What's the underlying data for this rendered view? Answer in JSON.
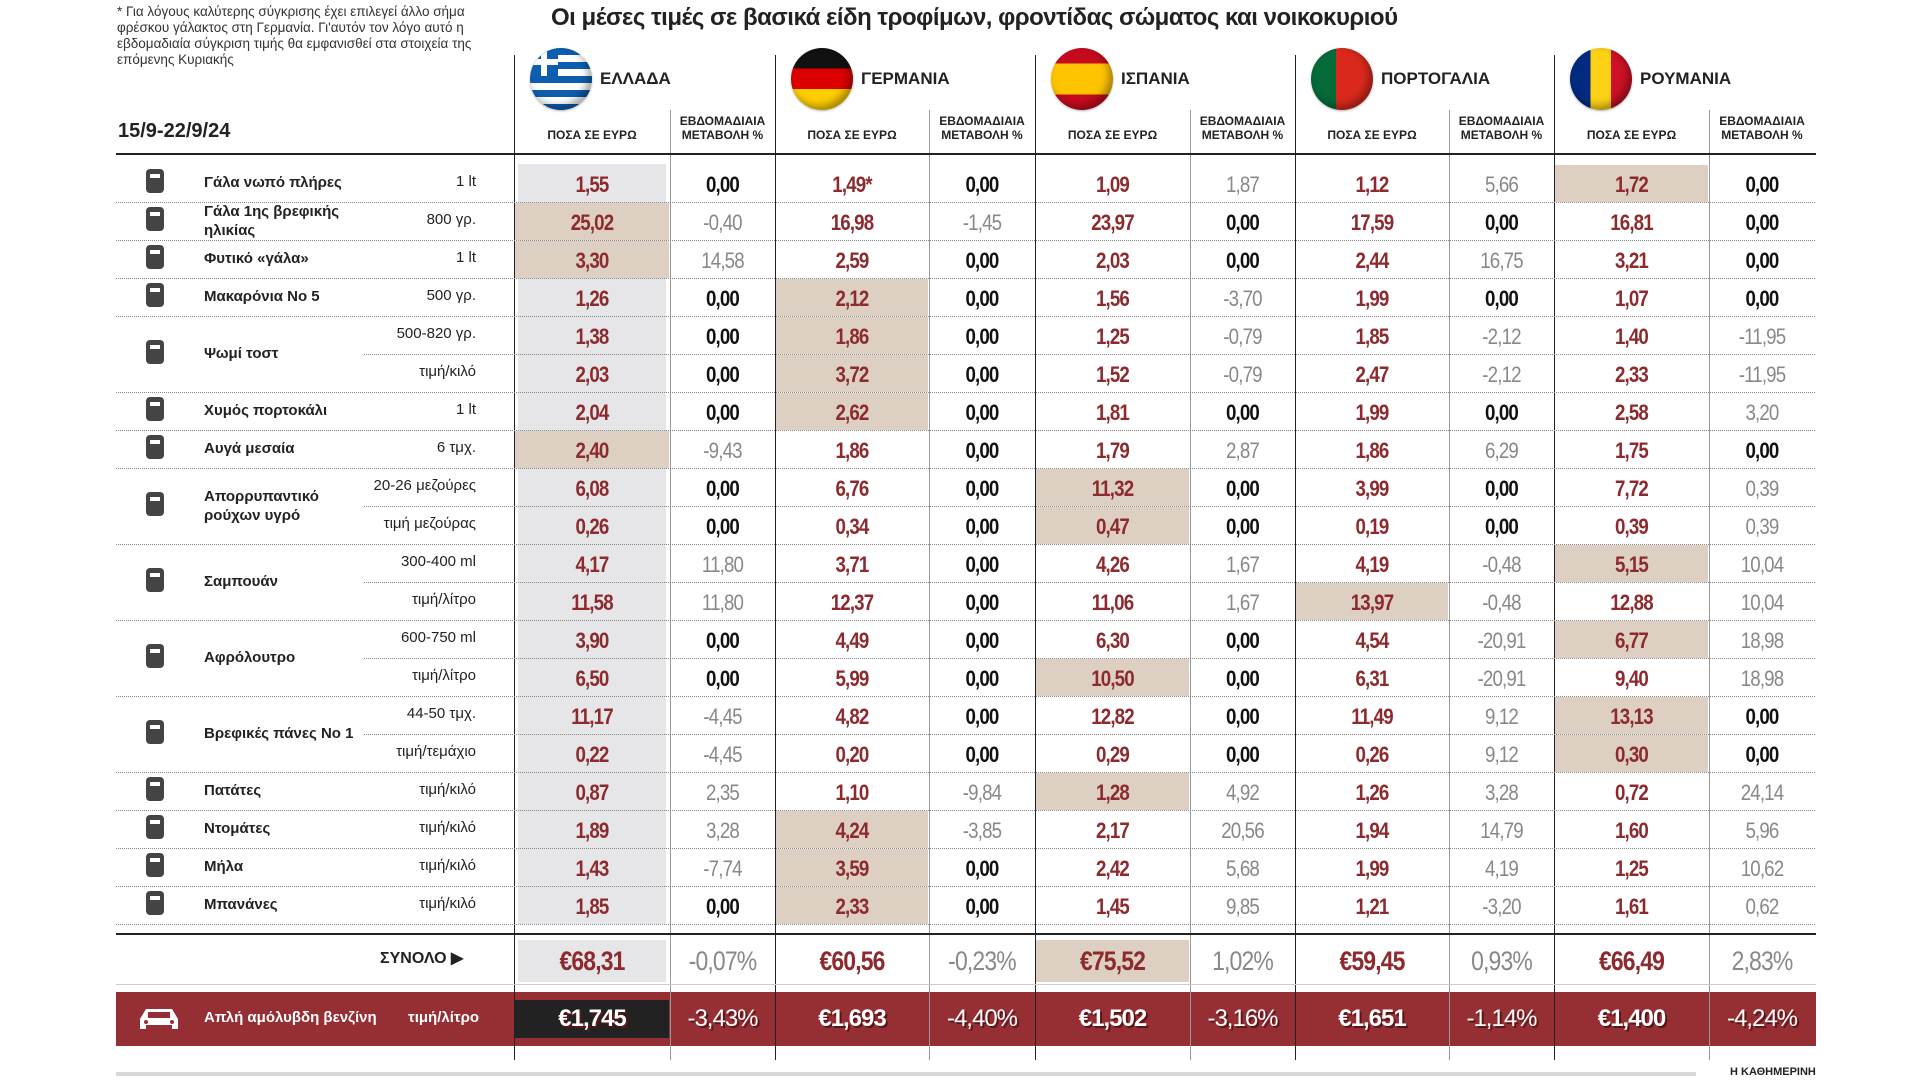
{
  "note": "* Για λόγους καλύτερης σύγκρισης έχει επιλεγεί άλλο σήμα φρέσκου γάλακτος στη Γερμανία. Γι'αυτόν τον λόγο αυτό η εβδομαδιαία σύγκριση τιμής θα εμφανισθεί στα στοιχεία της επόμενης Κυριακής",
  "title": "Οι μέσες τιμές σε βασικά είδη τροφίμων, φροντίδας σώματος και νοικοκυριού",
  "period": "15/9-22/9/24",
  "price_header": "ΠΟΣΑ ΣΕ ΕΥΡΩ",
  "change_header": "ΕΒΔΟΜΑΔΙΑΙΑ ΜΕΤΑΒΟΛΗ %",
  "colors": {
    "price": "#8c2a2e",
    "highlight": "#ddd0c2",
    "greece_bg": "#e6e6e8",
    "petrol": "#952f34"
  },
  "countries": [
    {
      "name": "ΕΛΛΑΔΑ",
      "flag": "greece-flag"
    },
    {
      "name": "ΓΕΡΜΑΝΙΑ",
      "flag": "germany-flag"
    },
    {
      "name": "ΙΣΠΑΝΙΑ",
      "flag": "spain-flag"
    },
    {
      "name": "ΠΟΡΤΟΓΑΛΙΑ",
      "flag": "portugal-flag"
    },
    {
      "name": "ΡΟΥΜΑΝΙΑ",
      "flag": "romania-flag"
    }
  ],
  "chart_data": {
    "type": "table",
    "groups": [
      {
        "label": "Γάλα νωπό πλήρες",
        "icon": "milk-carton-icon",
        "rows": [
          {
            "unit": "1 lt",
            "cells": [
              "1,55",
              "0,00",
              "1,49*",
              "0,00",
              "1,09",
              "1,87",
              "1,12",
              "5,66",
              "1,72",
              "0,00"
            ],
            "hl": 4
          }
        ]
      },
      {
        "label": "Γάλα 1ης βρεφικής ηλικίας",
        "icon": "baby-formula-icon",
        "rows": [
          {
            "unit": "800 γρ.",
            "cells": [
              "25,02",
              "-0,40",
              "16,98",
              "-1,45",
              "23,97",
              "0,00",
              "17,59",
              "0,00",
              "16,81",
              "0,00"
            ],
            "hl": 0
          }
        ]
      },
      {
        "label": "Φυτικό «γάλα»",
        "icon": "cup-icon",
        "rows": [
          {
            "unit": "1 lt",
            "cells": [
              "3,30",
              "14,58",
              "2,59",
              "0,00",
              "2,03",
              "0,00",
              "2,44",
              "16,75",
              "3,21",
              "0,00"
            ],
            "hl": 0
          }
        ]
      },
      {
        "label": "Μακαρόνια Νο 5",
        "icon": "pasta-icon",
        "rows": [
          {
            "unit": "500 γρ.",
            "cells": [
              "1,26",
              "0,00",
              "2,12",
              "0,00",
              "1,56",
              "-3,70",
              "1,99",
              "0,00",
              "1,07",
              "0,00"
            ],
            "hl": 1
          }
        ]
      },
      {
        "label": "Ψωμί τοστ",
        "icon": "bread-icon",
        "rows": [
          {
            "unit": "500-820 γρ.",
            "cells": [
              "1,38",
              "0,00",
              "1,86",
              "0,00",
              "1,25",
              "-0,79",
              "1,85",
              "-2,12",
              "1,40",
              "-11,95"
            ],
            "hl": 1
          },
          {
            "unit": "τιμή/κιλό",
            "cells": [
              "2,03",
              "0,00",
              "3,72",
              "0,00",
              "1,52",
              "-0,79",
              "2,47",
              "-2,12",
              "2,33",
              "-11,95"
            ],
            "hl": 1
          }
        ]
      },
      {
        "label": "Χυμός πορτοκάλι",
        "icon": "juice-icon",
        "rows": [
          {
            "unit": "1 lt",
            "cells": [
              "2,04",
              "0,00",
              "2,62",
              "0,00",
              "1,81",
              "0,00",
              "1,99",
              "0,00",
              "2,58",
              "3,20"
            ],
            "hl": 1
          }
        ]
      },
      {
        "label": "Αυγά μεσαία",
        "icon": "egg-icon",
        "rows": [
          {
            "unit": "6 τμχ.",
            "cells": [
              "2,40",
              "-9,43",
              "1,86",
              "0,00",
              "1,79",
              "2,87",
              "1,86",
              "6,29",
              "1,75",
              "0,00"
            ],
            "hl": 0
          }
        ]
      },
      {
        "label": "Απορρυπαντικό ρούχων υγρό",
        "icon": "detergent-icon",
        "rows": [
          {
            "unit": "20-26 μεζούρες",
            "cells": [
              "6,08",
              "0,00",
              "6,76",
              "0,00",
              "11,32",
              "0,00",
              "3,99",
              "0,00",
              "7,72",
              "0,39"
            ],
            "hl": 2
          },
          {
            "unit": "τιμή μεζούρας",
            "cells": [
              "0,26",
              "0,00",
              "0,34",
              "0,00",
              "0,47",
              "0,00",
              "0,19",
              "0,00",
              "0,39",
              "0,39"
            ],
            "hl": 2
          }
        ]
      },
      {
        "label": "Σαμπουάν",
        "icon": "shampoo-icon",
        "rows": [
          {
            "unit": "300-400 ml",
            "cells": [
              "4,17",
              "11,80",
              "3,71",
              "0,00",
              "4,26",
              "1,67",
              "4,19",
              "-0,48",
              "5,15",
              "10,04"
            ],
            "hl": 4
          },
          {
            "unit": "τιμή/λίτρο",
            "cells": [
              "11,58",
              "11,80",
              "12,37",
              "0,00",
              "11,06",
              "1,67",
              "13,97",
              "-0,48",
              "12,88",
              "10,04"
            ],
            "hl": 3
          }
        ]
      },
      {
        "label": "Αφρόλουτρο",
        "icon": "shower-gel-icon",
        "rows": [
          {
            "unit": "600-750 ml",
            "cells": [
              "3,90",
              "0,00",
              "4,49",
              "0,00",
              "6,30",
              "0,00",
              "4,54",
              "-20,91",
              "6,77",
              "18,98"
            ],
            "hl": 4
          },
          {
            "unit": "τιμή/λίτρο",
            "cells": [
              "6,50",
              "0,00",
              "5,99",
              "0,00",
              "10,50",
              "0,00",
              "6,31",
              "-20,91",
              "9,40",
              "18,98"
            ],
            "hl": 2
          }
        ]
      },
      {
        "label": "Βρεφικές πάνες Νο 1",
        "icon": "diaper-icon",
        "rows": [
          {
            "unit": "44-50 τμχ.",
            "cells": [
              "11,17",
              "-4,45",
              "4,82",
              "0,00",
              "12,82",
              "0,00",
              "11,49",
              "9,12",
              "13,13",
              "0,00"
            ],
            "hl": 4
          },
          {
            "unit": "τιμή/τεμάχιο",
            "cells": [
              "0,22",
              "-4,45",
              "0,20",
              "0,00",
              "0,29",
              "0,00",
              "0,26",
              "9,12",
              "0,30",
              "0,00"
            ],
            "hl": 4
          }
        ]
      },
      {
        "label": "Πατάτες",
        "icon": "potato-icon",
        "rows": [
          {
            "unit": "τιμή/κιλό",
            "cells": [
              "0,87",
              "2,35",
              "1,10",
              "-9,84",
              "1,28",
              "4,92",
              "1,26",
              "3,28",
              "0,72",
              "24,14"
            ],
            "hl": 2
          }
        ]
      },
      {
        "label": "Ντομάτες",
        "icon": "tomato-icon",
        "rows": [
          {
            "unit": "τιμή/κιλό",
            "cells": [
              "1,89",
              "3,28",
              "4,24",
              "-3,85",
              "2,17",
              "20,56",
              "1,94",
              "14,79",
              "1,60",
              "5,96"
            ],
            "hl": 1
          }
        ]
      },
      {
        "label": "Μήλα",
        "icon": "apple-icon",
        "rows": [
          {
            "unit": "τιμή/κιλό",
            "cells": [
              "1,43",
              "-7,74",
              "3,59",
              "0,00",
              "2,42",
              "5,68",
              "1,99",
              "4,19",
              "1,25",
              "10,62"
            ],
            "hl": 1
          }
        ]
      },
      {
        "label": "Μπανάνες",
        "icon": "banana-icon",
        "rows": [
          {
            "unit": "τιμή/κιλό",
            "cells": [
              "1,85",
              "0,00",
              "2,33",
              "0,00",
              "1,45",
              "9,85",
              "1,21",
              "-3,20",
              "1,61",
              "0,62"
            ],
            "hl": 1
          }
        ]
      }
    ],
    "total": {
      "label": "ΣΥΝΟΛΟ",
      "cells": [
        "€68,31",
        "-0,07%",
        "€60,56",
        "-0,23%",
        "€75,52",
        "1,02%",
        "€59,45",
        "0,93%",
        "€66,49",
        "2,83%"
      ],
      "hl": 2
    },
    "petrol": {
      "label": "Απλή αμόλυβδη βενζίνη",
      "unit": "τιμή/λίτρο",
      "cells": [
        "€1,745",
        "-3,43%",
        "€1,693",
        "-4,40%",
        "€1,502",
        "-3,16%",
        "€1,651",
        "-1,14%",
        "€1,400",
        "-4,24%"
      ]
    }
  },
  "brand": "Η ΚΑΘΗΜΕΡΙΝΗ"
}
